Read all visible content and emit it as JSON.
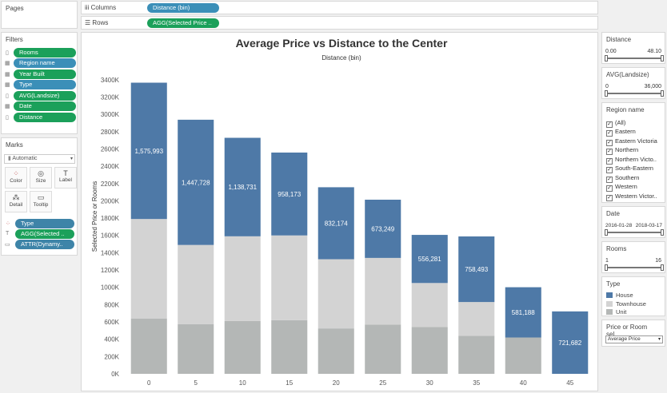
{
  "pages": {
    "title": "Pages"
  },
  "filters": {
    "title": "Filters",
    "items": [
      {
        "label": "Rooms",
        "icon": "measure-icon"
      },
      {
        "label": "Region name",
        "icon": "dimension-icon"
      },
      {
        "label": "Year Built",
        "icon": "dimension-icon"
      },
      {
        "label": "Type",
        "icon": "dimension-icon"
      },
      {
        "label": "AVG(Landsize)",
        "icon": "measure-icon"
      },
      {
        "label": "Date",
        "icon": "dimension-icon"
      },
      {
        "label": "Distance",
        "icon": "measure-icon"
      }
    ]
  },
  "marks": {
    "title": "Marks",
    "type_select": "Automatic",
    "buttons": [
      "Color",
      "Size",
      "Label",
      "Detail",
      "Tooltip"
    ],
    "pills": [
      "Type",
      "AGG(Selected ..",
      "ATTR(Dynamy.."
    ]
  },
  "shelves": {
    "columns_label": "Columns",
    "columns_pill": "Distance (bin)",
    "rows_label": "Rows",
    "rows_pill": "AGG(Selected Price .."
  },
  "right_panel": {
    "distance": {
      "title": "Distance",
      "min": "0.00",
      "max": "48.10"
    },
    "landsize": {
      "title": "AVG(Landsize)",
      "min": "0",
      "max": "36,000"
    },
    "region": {
      "title": "Region name",
      "items": [
        "(All)",
        "Eastern",
        "Eastern Victoria",
        "Northern",
        "Northern Victo..",
        "South-Eastern",
        "Southern",
        "Western",
        "Western Victor.."
      ]
    },
    "date": {
      "title": "Date",
      "min": "2016-01-28",
      "max": "2018-03-17"
    },
    "rooms": {
      "title": "Rooms",
      "min": "1",
      "max": "16"
    },
    "type_legend": {
      "title": "Type",
      "items": [
        {
          "label": "House",
          "color": "#4e79a7"
        },
        {
          "label": "Townhouse",
          "color": "#d3d3d3"
        },
        {
          "label": "Unit",
          "color": "#b4b7b6"
        }
      ]
    },
    "price_param": {
      "title": "Price or Room sel..",
      "value": "Average Price"
    }
  },
  "chart_data": {
    "type": "bar",
    "title": "Average Price vs Distance to the Center",
    "xlabel": "Distance (bin)",
    "ylabel": "Selected Price or Rooms",
    "categories": [
      "0",
      "5",
      "10",
      "15",
      "20",
      "25",
      "30",
      "35",
      "40",
      "45"
    ],
    "y_ticks": [
      "0K",
      "200K",
      "400K",
      "600K",
      "800K",
      "1000K",
      "1200K",
      "1400K",
      "1600K",
      "1800K",
      "2000K",
      "2200K",
      "2400K",
      "2600K",
      "2800K",
      "3000K",
      "3200K",
      "3400K"
    ],
    "ylim": [
      0,
      3500000
    ],
    "stacked": true,
    "series": [
      {
        "name": "Unit",
        "color": "#b4b7b6",
        "values": [
          640000,
          575000,
          610000,
          620000,
          525000,
          570000,
          540000,
          440000,
          420000,
          0
        ]
      },
      {
        "name": "Townhouse",
        "color": "#d3d3d3",
        "values": [
          1150000,
          915000,
          980000,
          980000,
          800000,
          770000,
          510000,
          390000,
          0,
          0
        ]
      },
      {
        "name": "House",
        "color": "#4e79a7",
        "values": [
          1575993,
          1447728,
          1138731,
          958173,
          832174,
          673249,
          556281,
          758493,
          581188,
          721682
        ]
      }
    ],
    "bar_labels": [
      "1,575,993",
      "1,447,728",
      "1,138,731",
      "958,173",
      "832,174",
      "673,249",
      "556,281",
      "758,493",
      "581,188",
      "721,682"
    ]
  }
}
